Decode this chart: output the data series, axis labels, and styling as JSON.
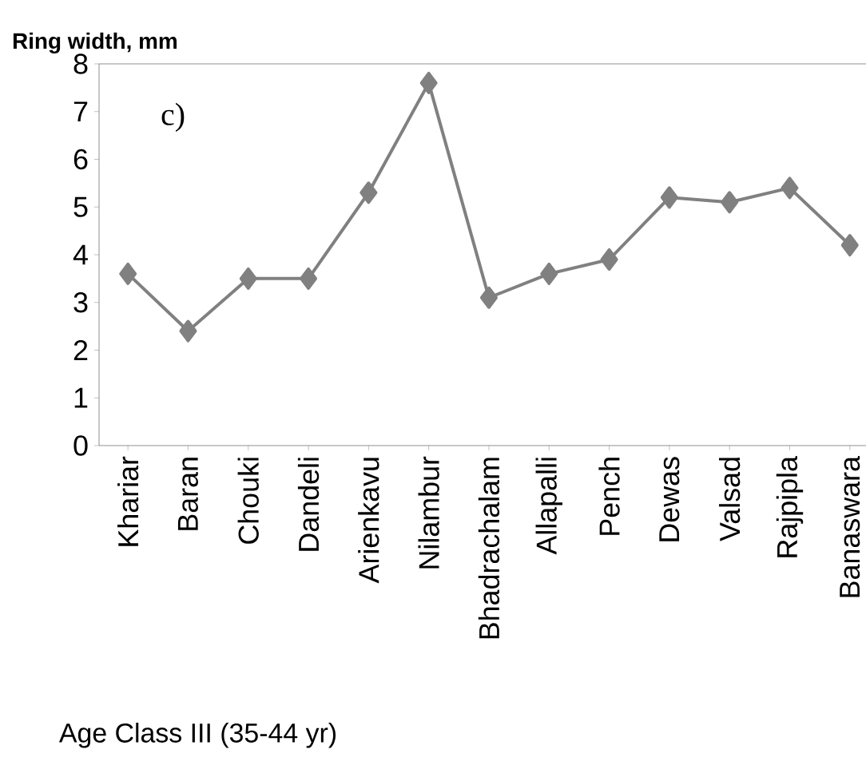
{
  "chart_data": {
    "type": "line",
    "ylabel": "Ring width, mm",
    "xlabel": "Age Class III (35-44 yr)",
    "annotations": [
      "c)"
    ],
    "categories": [
      "Khariar",
      "Baran",
      "Chouki",
      "Dandeli",
      "Arienkavu",
      "Nilambur",
      "Bhadrachalam",
      "Allapalli",
      "Pench",
      "Dewas",
      "Valsad",
      "Rajpipla",
      "Banaswara"
    ],
    "series": [
      {
        "color": "#808080",
        "values": [
          3.6,
          2.4,
          3.5,
          3.5,
          5.3,
          7.6,
          3.1,
          3.6,
          3.9,
          5.2,
          5.1,
          5.4,
          4.2
        ]
      }
    ],
    "ylim": [
      0,
      8
    ],
    "yticks": [
      0,
      1,
      2,
      3,
      4,
      5,
      6,
      7,
      8
    ],
    "marker": "diamond",
    "line_style": "solid",
    "grid": false
  }
}
